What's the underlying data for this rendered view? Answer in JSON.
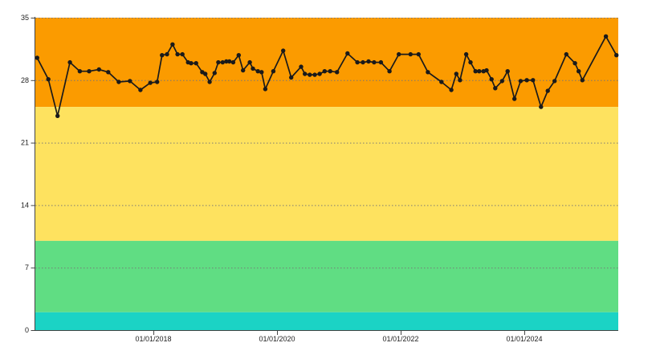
{
  "chart_data": {
    "type": "line",
    "title": "",
    "xlabel": "",
    "ylabel": "",
    "x_axis": {
      "tick_labels": [
        "01/01/2018",
        "01/01/2020",
        "01/01/2022",
        "01/01/2024"
      ],
      "tick_values": [
        2018,
        2020,
        2022,
        2024
      ],
      "range": [
        2016.09,
        2025.52
      ]
    },
    "y_axis": {
      "tick_labels": [
        "0",
        "7",
        "14",
        "21",
        "28",
        "35"
      ],
      "tick_values": [
        0,
        7,
        14,
        21,
        28,
        35
      ],
      "range": [
        0,
        35
      ]
    },
    "grid": {
      "horizontal": true,
      "vertical": false,
      "style": "dotted"
    },
    "legend": "none",
    "threshold_bands": [
      {
        "name": "band-orange",
        "from": 25,
        "to": 35,
        "color": "#FB9B00"
      },
      {
        "name": "band-yellow",
        "from": 10,
        "to": 25,
        "color": "#FEE25F"
      },
      {
        "name": "band-green",
        "from": 2,
        "to": 10,
        "color": "#60DD83"
      },
      {
        "name": "band-teal",
        "from": 0,
        "to": 2,
        "color": "#1BD3C5"
      }
    ],
    "series": [
      {
        "name": "value",
        "color": "#1A1A1A",
        "marker": "circle",
        "points": [
          [
            2016.12,
            30.5
          ],
          [
            2016.3,
            28.1
          ],
          [
            2016.45,
            24.0
          ],
          [
            2016.65,
            30.0
          ],
          [
            2016.81,
            29.0
          ],
          [
            2016.96,
            29.0
          ],
          [
            2017.12,
            29.2
          ],
          [
            2017.27,
            28.9
          ],
          [
            2017.44,
            27.8
          ],
          [
            2017.62,
            27.9
          ],
          [
            2017.79,
            26.9
          ],
          [
            2017.95,
            27.7
          ],
          [
            2018.06,
            27.8
          ],
          [
            2018.14,
            30.8
          ],
          [
            2018.22,
            30.9
          ],
          [
            2018.31,
            32.0
          ],
          [
            2018.39,
            30.9
          ],
          [
            2018.47,
            30.9
          ],
          [
            2018.56,
            30.0
          ],
          [
            2018.61,
            29.9
          ],
          [
            2018.69,
            29.9
          ],
          [
            2018.79,
            28.9
          ],
          [
            2018.84,
            28.7
          ],
          [
            2018.91,
            27.8
          ],
          [
            2018.99,
            28.8
          ],
          [
            2019.05,
            30.0
          ],
          [
            2019.12,
            30.0
          ],
          [
            2019.18,
            30.1
          ],
          [
            2019.23,
            30.1
          ],
          [
            2019.29,
            30.0
          ],
          [
            2019.38,
            30.8
          ],
          [
            2019.45,
            29.1
          ],
          [
            2019.56,
            30.0
          ],
          [
            2019.61,
            29.3
          ],
          [
            2019.69,
            29.0
          ],
          [
            2019.75,
            28.9
          ],
          [
            2019.81,
            27.0
          ],
          [
            2019.94,
            29.0
          ],
          [
            2020.1,
            31.3
          ],
          [
            2020.23,
            28.3
          ],
          [
            2020.39,
            29.5
          ],
          [
            2020.45,
            28.7
          ],
          [
            2020.53,
            28.6
          ],
          [
            2020.61,
            28.6
          ],
          [
            2020.69,
            28.7
          ],
          [
            2020.77,
            29.0
          ],
          [
            2020.86,
            29.0
          ],
          [
            2020.97,
            28.9
          ],
          [
            2021.14,
            31.0
          ],
          [
            2021.3,
            30.0
          ],
          [
            2021.39,
            30.0
          ],
          [
            2021.48,
            30.1
          ],
          [
            2021.57,
            30.0
          ],
          [
            2021.68,
            30.0
          ],
          [
            2021.82,
            29.0
          ],
          [
            2021.97,
            30.9
          ],
          [
            2022.16,
            30.9
          ],
          [
            2022.29,
            30.9
          ],
          [
            2022.44,
            28.9
          ],
          [
            2022.66,
            27.8
          ],
          [
            2022.82,
            26.9
          ],
          [
            2022.9,
            28.7
          ],
          [
            2022.96,
            28.0
          ],
          [
            2023.06,
            30.9
          ],
          [
            2023.13,
            30.0
          ],
          [
            2023.21,
            29.0
          ],
          [
            2023.27,
            29.0
          ],
          [
            2023.34,
            29.0
          ],
          [
            2023.39,
            29.1
          ],
          [
            2023.47,
            28.1
          ],
          [
            2023.53,
            27.1
          ],
          [
            2023.64,
            27.9
          ],
          [
            2023.73,
            29.0
          ],
          [
            2023.84,
            25.9
          ],
          [
            2023.94,
            27.9
          ],
          [
            2024.04,
            28.0
          ],
          [
            2024.14,
            28.0
          ],
          [
            2024.27,
            25.0
          ],
          [
            2024.38,
            26.8
          ],
          [
            2024.49,
            27.9
          ],
          [
            2024.68,
            30.9
          ],
          [
            2024.82,
            29.9
          ],
          [
            2024.88,
            29.0
          ],
          [
            2024.94,
            28.0
          ],
          [
            2025.32,
            32.9
          ],
          [
            2025.49,
            30.8
          ]
        ]
      }
    ]
  },
  "colors": {
    "axis": "#444444",
    "grid": "#777777",
    "text": "#222222",
    "background": "#FFFFFF"
  }
}
